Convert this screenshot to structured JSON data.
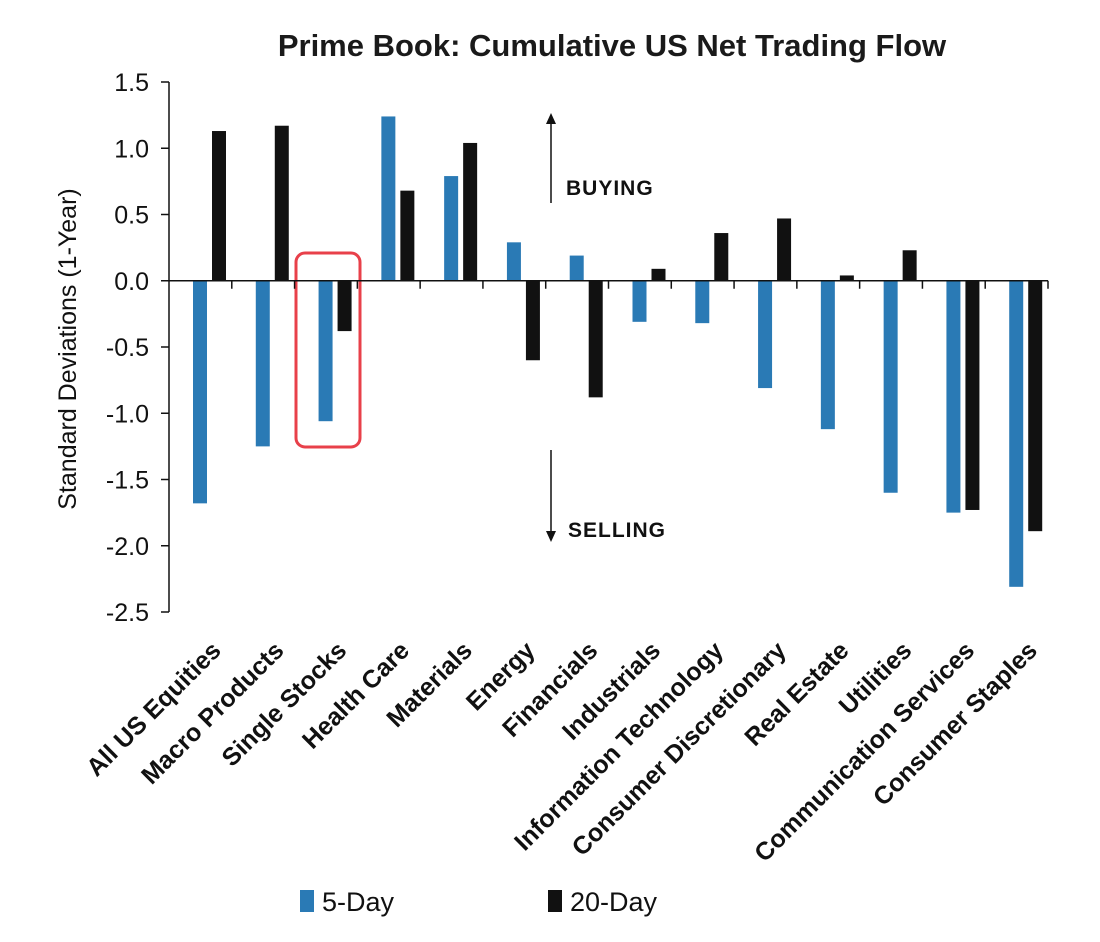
{
  "chart_data": {
    "type": "bar",
    "title": "Prime Book: Cumulative US Net Trading Flow",
    "ylabel": "Standard Deviations  (1-Year)",
    "xlabel": "",
    "ylim": [
      -2.5,
      1.5
    ],
    "yticks": [
      "1.5",
      "1.0",
      "0.5",
      "0.0",
      "-0.5",
      "-1.0",
      "-1.5",
      "-2.0",
      "-2.5"
    ],
    "categories": [
      "All US Equities",
      "Macro Products",
      "Single Stocks",
      "Health Care",
      "Materials",
      "Energy",
      "Financials",
      "Industrials",
      "Information Technology",
      "Consumer Discretionary",
      "Real Estate",
      "Utilities",
      "Communication Services",
      "Consumer Staples"
    ],
    "series": [
      {
        "name": "5-Day",
        "color": "#2a7ab5",
        "values": [
          -1.68,
          -1.25,
          -1.06,
          1.24,
          0.79,
          0.29,
          0.19,
          -0.31,
          -0.32,
          -0.81,
          -1.12,
          -1.6,
          -1.75,
          -2.31
        ]
      },
      {
        "name": "20-Day",
        "color": "#111111",
        "values": [
          1.13,
          1.17,
          -0.38,
          0.68,
          1.04,
          -0.6,
          -0.88,
          0.09,
          0.36,
          0.47,
          0.04,
          0.23,
          -1.73,
          -1.89
        ]
      }
    ],
    "annotations": {
      "buying": "BUYING",
      "selling": "SELLING"
    },
    "highlight_category": "Single Stocks",
    "highlight_color": "#e8404a",
    "legend_position": "bottom",
    "grid": false
  }
}
